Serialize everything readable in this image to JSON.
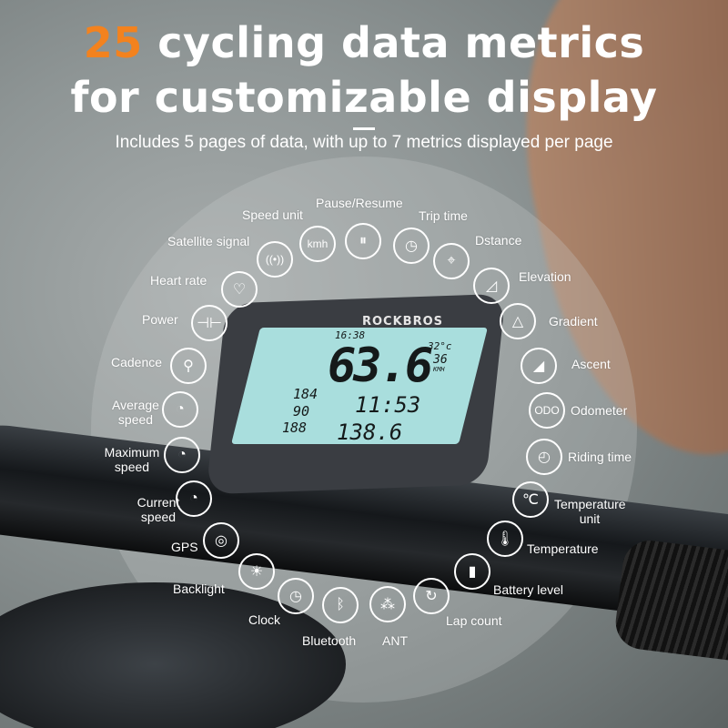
{
  "headline": {
    "highlight": "25",
    "line1_rest": " cycling data metrics",
    "line2": "for customizable display"
  },
  "subtitle": "Includes 5 pages of data, with up to 7 metrics displayed per page",
  "accent_color": "#f3821e",
  "device": {
    "brand": "ROCKBROS",
    "clock": "16:38",
    "temperature": "32°c",
    "big_speed": "63.6",
    "small_speed": "36",
    "speed_unit": "KMH",
    "value_left_1": "184",
    "value_left_2": "90",
    "value_left_3": "188",
    "time": "11:53",
    "distance": "138.6"
  },
  "metrics": [
    {
      "label": "Pause/Resume",
      "icon": "pause-icon",
      "glyph": "⏸"
    },
    {
      "label": "Trip time",
      "icon": "stopwatch-icon",
      "glyph": "◷"
    },
    {
      "label": "Dstance",
      "icon": "location-pin-icon",
      "glyph": "⌖"
    },
    {
      "label": "Elevation",
      "icon": "elevation-icon",
      "glyph": "◿"
    },
    {
      "label": "Gradient",
      "icon": "gradient-icon",
      "glyph": "△"
    },
    {
      "label": "Ascent",
      "icon": "ascent-icon",
      "glyph": "◢"
    },
    {
      "label": "Odometer",
      "icon": "odometer-icon",
      "glyph": "ODO"
    },
    {
      "label": "Riding time",
      "icon": "clock-icon",
      "glyph": "◴"
    },
    {
      "label": "Temperature unit",
      "icon": "celsius-icon",
      "glyph": "℃"
    },
    {
      "label": "Temperature",
      "icon": "thermometer-icon",
      "glyph": "🌡"
    },
    {
      "label": "Battery level",
      "icon": "battery-icon",
      "glyph": "▮"
    },
    {
      "label": "Lap count",
      "icon": "lap-icon",
      "glyph": "↻"
    },
    {
      "label": "ANT",
      "icon": "ant-icon",
      "glyph": "⁂"
    },
    {
      "label": "Bluetooth",
      "icon": "bluetooth-icon",
      "glyph": "ᛒ"
    },
    {
      "label": "Clock",
      "icon": "clock-icon",
      "glyph": "◷"
    },
    {
      "label": "Backlight",
      "icon": "backlight-icon",
      "glyph": "☀"
    },
    {
      "label": "GPS",
      "icon": "gps-icon",
      "glyph": "◎"
    },
    {
      "label": "Current speed",
      "icon": "speedometer-icon",
      "glyph": "◔"
    },
    {
      "label": "Maximum speed",
      "icon": "max-speed-icon",
      "glyph": "◔"
    },
    {
      "label": "Average speed",
      "icon": "avg-speed-icon",
      "glyph": "◔"
    },
    {
      "label": "Cadence",
      "icon": "cadence-icon",
      "glyph": "⚲"
    },
    {
      "label": "Power",
      "icon": "power-icon",
      "glyph": "⊣⊢"
    },
    {
      "label": "Heart rate",
      "icon": "heart-rate-icon",
      "glyph": "♡"
    },
    {
      "label": "Satellite signal",
      "icon": "wifi-signal-icon",
      "glyph": "((•))"
    },
    {
      "label": "Speed unit",
      "icon": "kmh-icon",
      "glyph": "kmh"
    }
  ]
}
